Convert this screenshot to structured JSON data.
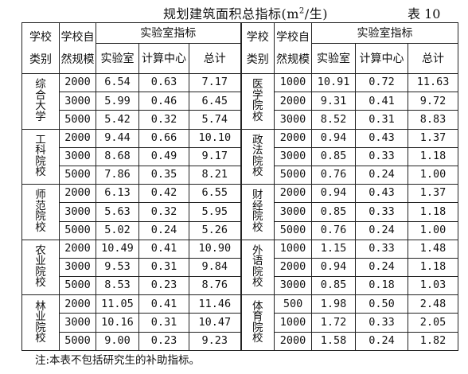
{
  "title": "规划建筑面积总指标(m²/生)",
  "title_main": "规划建筑面积总指标(m",
  "title_sup": "2",
  "title_tail": "/生)",
  "table_no": "表 10",
  "headers": {
    "school_type_1": "学校",
    "school_type_2": "类别",
    "scale_1": "学校自",
    "scale_2": "然规模",
    "lab_group": "实验室指标",
    "lab": "实验室",
    "computing": "计算中心",
    "total": "总计"
  },
  "left_groups": [
    {
      "category": "综合大学",
      "rows": [
        {
          "scale": "2000",
          "lab": "6.54",
          "comp": "0.63",
          "total": "7.17"
        },
        {
          "scale": "3000",
          "lab": "5.99",
          "comp": "0.46",
          "total": "6.45"
        },
        {
          "scale": "5000",
          "lab": "5.42",
          "comp": "0.32",
          "total": "5.74"
        }
      ]
    },
    {
      "category": "工科院校",
      "rows": [
        {
          "scale": "2000",
          "lab": "9.44",
          "comp": "0.66",
          "total": "10.10"
        },
        {
          "scale": "3000",
          "lab": "8.68",
          "comp": "0.49",
          "total": "9.17"
        },
        {
          "scale": "5000",
          "lab": "7.86",
          "comp": "0.35",
          "total": "8.21"
        }
      ]
    },
    {
      "category": "师范院校",
      "rows": [
        {
          "scale": "2000",
          "lab": "6.13",
          "comp": "0.42",
          "total": "6.55"
        },
        {
          "scale": "3000",
          "lab": "5.63",
          "comp": "0.32",
          "total": "5.95"
        },
        {
          "scale": "5000",
          "lab": "5.02",
          "comp": "0.24",
          "total": "5.26"
        }
      ]
    },
    {
      "category": "农业院校",
      "rows": [
        {
          "scale": "2000",
          "lab": "10.49",
          "comp": "0.41",
          "total": "10.90"
        },
        {
          "scale": "3000",
          "lab": "9.53",
          "comp": "0.31",
          "total": "9.84"
        },
        {
          "scale": "5000",
          "lab": "8.53",
          "comp": "0.23",
          "total": "8.76"
        }
      ]
    },
    {
      "category": "林业院校",
      "rows": [
        {
          "scale": "2000",
          "lab": "11.05",
          "comp": "0.41",
          "total": "11.46"
        },
        {
          "scale": "3000",
          "lab": "10.16",
          "comp": "0.31",
          "total": "10.47"
        },
        {
          "scale": "5000",
          "lab": "9.00",
          "comp": "0.23",
          "total": "9.23"
        }
      ]
    }
  ],
  "right_groups": [
    {
      "category": "医学院校",
      "rows": [
        {
          "scale": "1000",
          "lab": "10.91",
          "comp": "0.72",
          "total": "11.63"
        },
        {
          "scale": "2000",
          "lab": "9.31",
          "comp": "0.41",
          "total": "9.72"
        },
        {
          "scale": "3000",
          "lab": "8.52",
          "comp": "0.31",
          "total": "8.83"
        }
      ]
    },
    {
      "category": "政法院校",
      "rows": [
        {
          "scale": "2000",
          "lab": "0.94",
          "comp": "0.43",
          "total": "1.37"
        },
        {
          "scale": "3000",
          "lab": "0.85",
          "comp": "0.33",
          "total": "1.18"
        },
        {
          "scale": "5000",
          "lab": "0.76",
          "comp": "0.24",
          "total": "1.00"
        }
      ]
    },
    {
      "category": "财经院校",
      "rows": [
        {
          "scale": "2000",
          "lab": "0.94",
          "comp": "0.43",
          "total": "1.37"
        },
        {
          "scale": "3000",
          "lab": "0.85",
          "comp": "0.33",
          "total": "1.18"
        },
        {
          "scale": "5000",
          "lab": "0.76",
          "comp": "0.24",
          "total": "1.00"
        }
      ]
    },
    {
      "category": "外语院校",
      "rows": [
        {
          "scale": "1000",
          "lab": "1.15",
          "comp": "0.33",
          "total": "1.48"
        },
        {
          "scale": "2000",
          "lab": "0.94",
          "comp": "0.24",
          "total": "1.18"
        },
        {
          "scale": "3000",
          "lab": "0.85",
          "comp": "0.18",
          "total": "1.03"
        }
      ]
    },
    {
      "category": "体育院校",
      "rows": [
        {
          "scale": "500",
          "lab": "1.98",
          "comp": "0.50",
          "total": "2.48"
        },
        {
          "scale": "1000",
          "lab": "1.72",
          "comp": "0.33",
          "total": "2.05"
        },
        {
          "scale": "2000",
          "lab": "1.58",
          "comp": "0.24",
          "total": "1.82"
        }
      ]
    }
  ],
  "note": "注:本表不包括研究生的补助指标。"
}
